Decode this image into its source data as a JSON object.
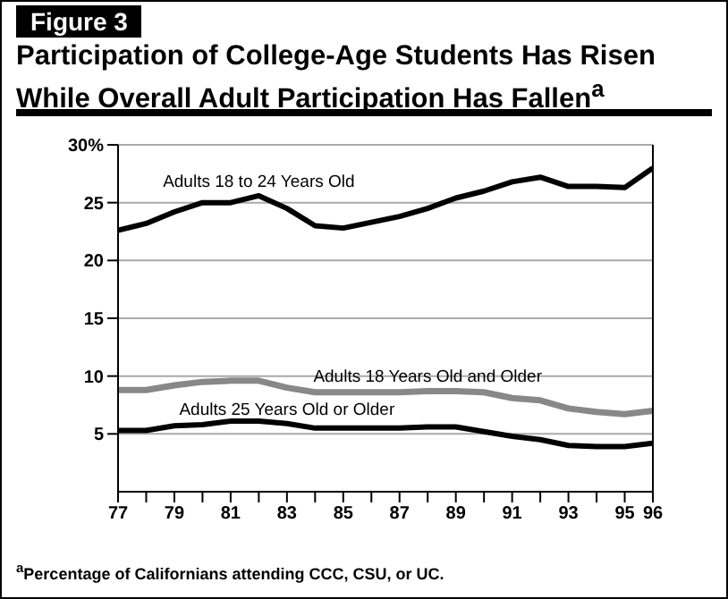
{
  "chart_data": {
    "type": "line",
    "subtitle": "Figure 3",
    "title": "Participation of College-Age Students Has Risen While Overall Adult Participation Has Fallen$^{a}$",
    "x": [
      77,
      78,
      79,
      80,
      81,
      82,
      83,
      84,
      85,
      86,
      87,
      88,
      89,
      90,
      91,
      92,
      93,
      94,
      95,
      96
    ],
    "series": [
      {
        "name": "Adults 18 to 24 Years Old",
        "color": "#000000",
        "values": [
          22.6,
          23.2,
          24.2,
          25,
          25,
          25.6,
          24.5,
          23,
          22.8,
          23.3,
          23.8,
          24.5,
          25.4,
          26,
          26.8,
          27.2,
          26.4,
          26.4,
          26.3,
          28
        ]
      },
      {
        "name": "Adults 18 Years Old and Older",
        "color": "#888888",
        "values": [
          8.8,
          8.8,
          9.2,
          9.5,
          9.6,
          9.6,
          9,
          8.6,
          8.6,
          8.6,
          8.6,
          8.7,
          8.7,
          8.6,
          8.1,
          7.9,
          7.2,
          6.9,
          6.7,
          7
        ]
      },
      {
        "name": "Adults 25 Years Old or Older",
        "color": "#000000",
        "values": [
          5.3,
          5.3,
          5.7,
          5.8,
          6.1,
          6.1,
          5.9,
          5.5,
          5.5,
          5.5,
          5.5,
          5.6,
          5.6,
          5.2,
          4.8,
          4.5,
          4,
          3.9,
          3.9,
          4.2
        ]
      }
    ],
    "xlim": [
      77,
      96
    ],
    "xticks": [
      77,
      {
        "value": 78,
        "label": null
      },
      79,
      {
        "value": 80,
        "label": null
      },
      81,
      {
        "value": 82,
        "label": null
      },
      83,
      {
        "value": 84,
        "label": null
      },
      85,
      {
        "value": 86,
        "label": null
      },
      87,
      {
        "value": 88,
        "label": null
      },
      89,
      {
        "value": 90,
        "label": null
      },
      91,
      {
        "value": 92,
        "label": null
      },
      93,
      {
        "value": 94,
        "label": null
      },
      95,
      96
    ],
    "ylim": [
      0,
      30
    ],
    "yticks": [
      5,
      10,
      15,
      20,
      25,
      {
        "value": 30,
        "label": "30%"
      }
    ],
    "grid": "y",
    "marker": "none",
    "line_style": "solid",
    "annotations": [
      "$^{a}$Percentage of Californians attending CCC, CSU, or UC."
    ]
  }
}
